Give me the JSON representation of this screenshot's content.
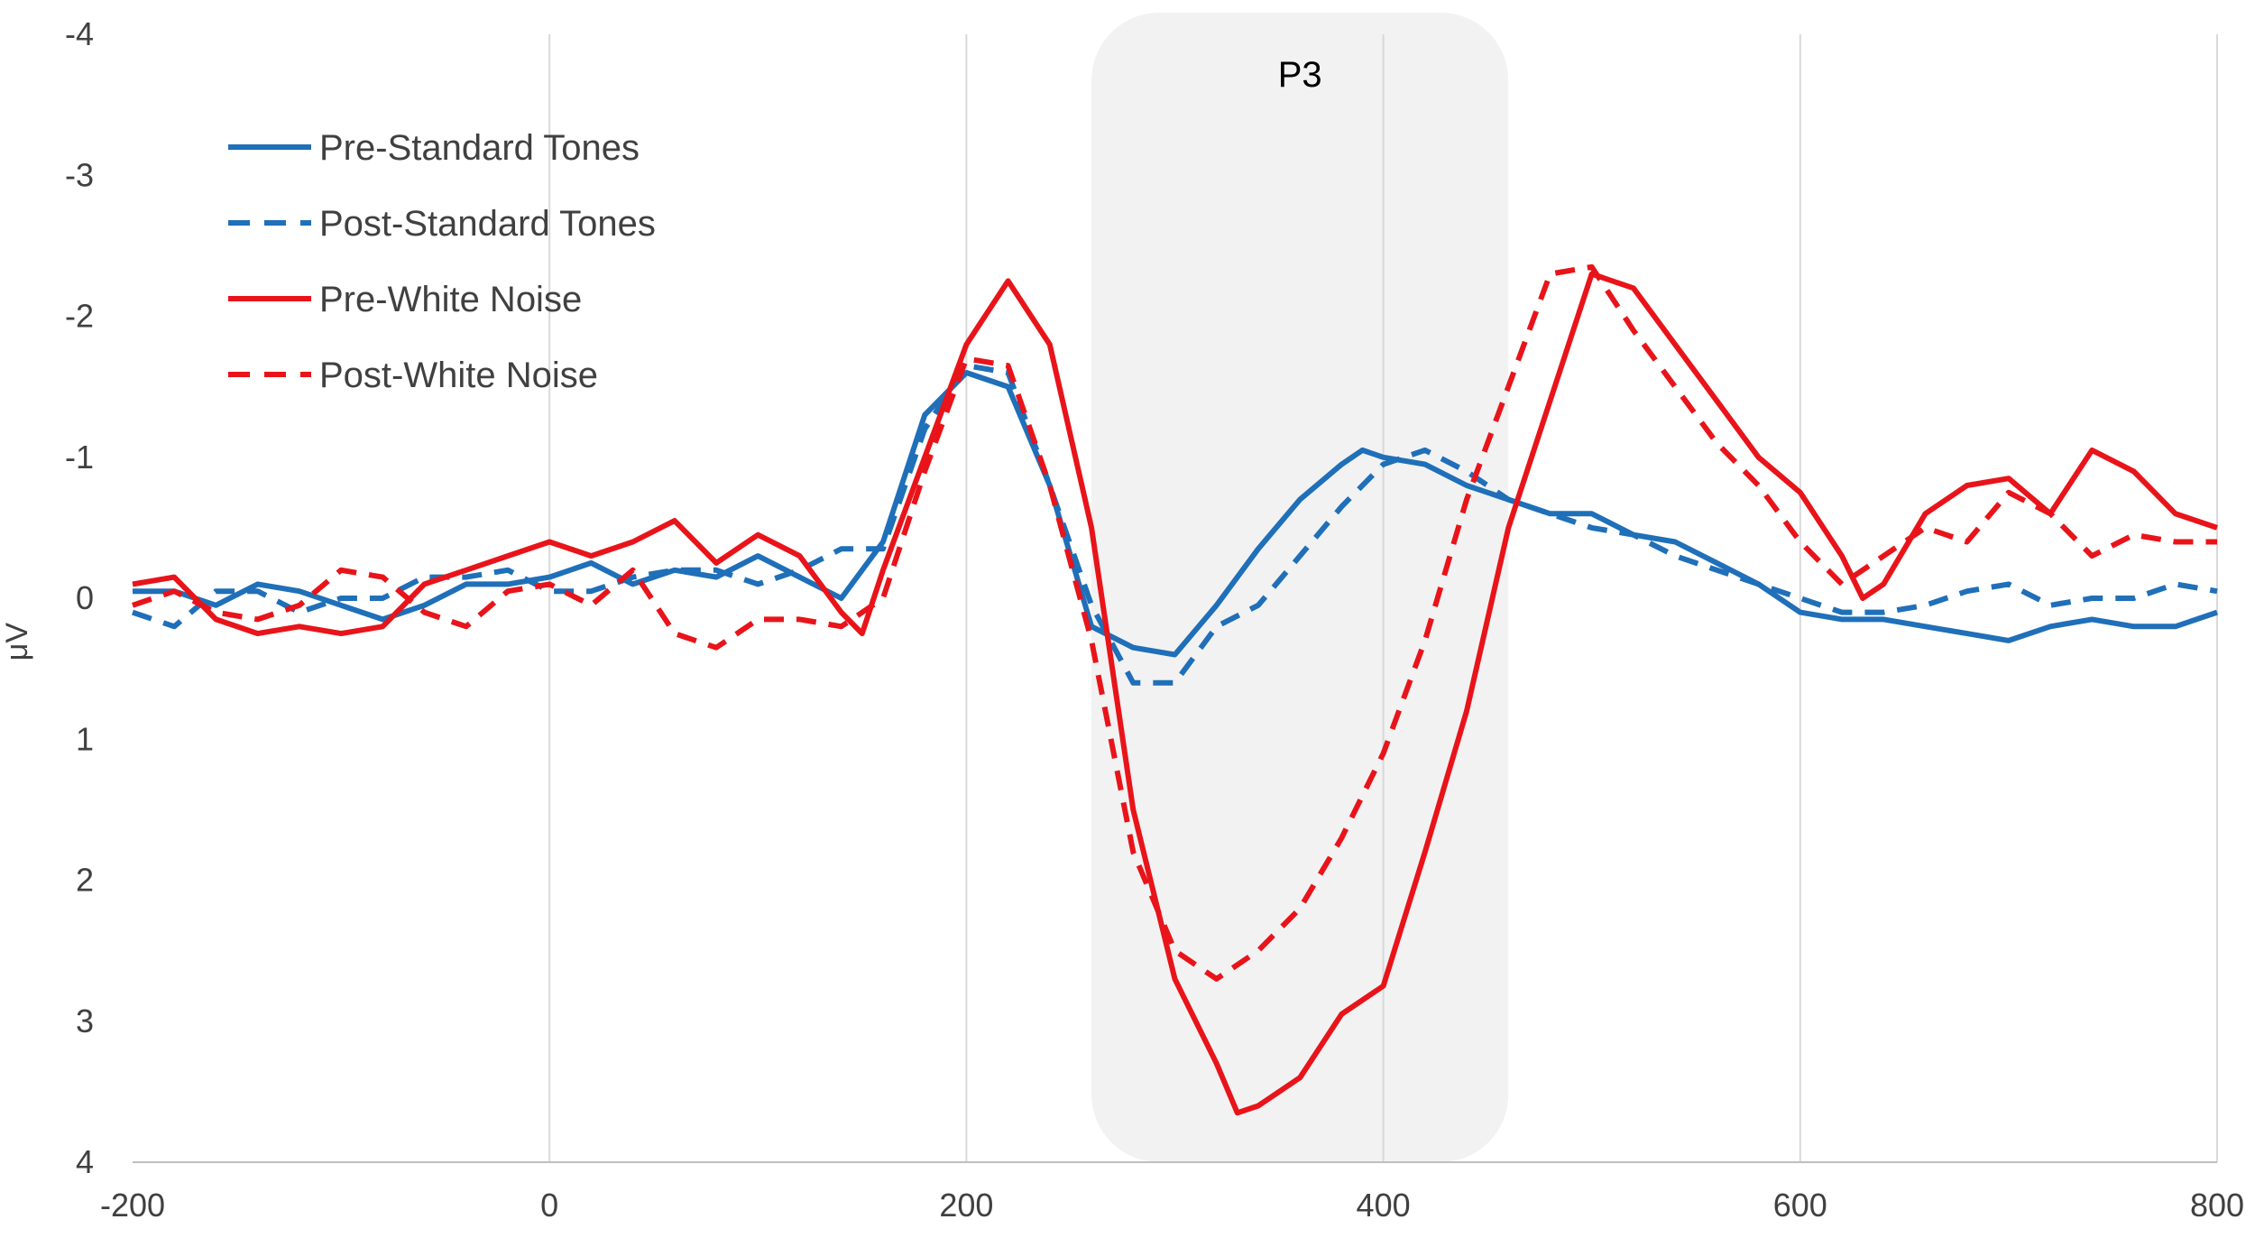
{
  "chart_data": {
    "type": "line",
    "title": "",
    "xlabel": "",
    "ylabel": "μV",
    "xlim": [
      -200,
      800
    ],
    "ylim": [
      -4,
      4
    ],
    "y_inverted": true,
    "x_ticks": [
      -200,
      0,
      200,
      400,
      600,
      800
    ],
    "y_ticks": [
      -4,
      -3,
      -2,
      -1,
      0,
      1,
      2,
      3,
      4
    ],
    "grid": "vertical",
    "legend_position": "top-left",
    "highlight": {
      "label": "P3",
      "x_range": [
        260,
        460
      ],
      "color": "#f2f2f2"
    },
    "series": [
      {
        "name": "Pre-Standard Tones",
        "color": "#1f6fb9",
        "dashed": false,
        "x": [
          -200,
          -180,
          -160,
          -140,
          -120,
          -100,
          -80,
          -60,
          -40,
          -20,
          0,
          20,
          40,
          60,
          80,
          100,
          120,
          140,
          160,
          180,
          200,
          220,
          240,
          260,
          280,
          300,
          320,
          340,
          360,
          380,
          390,
          400,
          420,
          440,
          460,
          480,
          500,
          520,
          540,
          560,
          580,
          600,
          620,
          640,
          660,
          680,
          700,
          720,
          740,
          760,
          780,
          800
        ],
        "values": [
          -0.05,
          -0.05,
          0.05,
          -0.1,
          -0.05,
          0.05,
          0.15,
          0.05,
          -0.1,
          -0.1,
          -0.15,
          -0.25,
          -0.1,
          -0.2,
          -0.15,
          -0.3,
          -0.15,
          0.0,
          -0.4,
          -1.3,
          -1.6,
          -1.5,
          -0.8,
          0.2,
          0.35,
          0.4,
          0.05,
          -0.35,
          -0.7,
          -0.95,
          -1.05,
          -1.0,
          -0.95,
          -0.8,
          -0.7,
          -0.6,
          -0.6,
          -0.45,
          -0.4,
          -0.25,
          -0.1,
          0.1,
          0.15,
          0.15,
          0.2,
          0.25,
          0.3,
          0.2,
          0.15,
          0.2,
          0.2,
          0.1
        ]
      },
      {
        "name": "Post-Standard Tones",
        "color": "#1f6fb9",
        "dashed": true,
        "x": [
          -200,
          -180,
          -160,
          -140,
          -120,
          -100,
          -80,
          -60,
          -40,
          -20,
          0,
          20,
          40,
          60,
          80,
          100,
          120,
          140,
          160,
          180,
          200,
          220,
          240,
          260,
          280,
          300,
          320,
          340,
          360,
          380,
          400,
          420,
          440,
          460,
          480,
          500,
          520,
          540,
          560,
          580,
          600,
          620,
          640,
          660,
          680,
          700,
          720,
          740,
          760,
          780,
          800
        ],
        "values": [
          0.1,
          0.2,
          -0.05,
          -0.05,
          0.1,
          0.0,
          0.0,
          -0.15,
          -0.15,
          -0.2,
          -0.05,
          -0.05,
          -0.15,
          -0.2,
          -0.2,
          -0.1,
          -0.2,
          -0.35,
          -0.35,
          -1.2,
          -1.65,
          -1.6,
          -0.8,
          0.05,
          0.6,
          0.6,
          0.2,
          0.05,
          -0.3,
          -0.65,
          -0.95,
          -1.05,
          -0.9,
          -0.7,
          -0.6,
          -0.5,
          -0.45,
          -0.3,
          -0.2,
          -0.1,
          0.0,
          0.1,
          0.1,
          0.05,
          -0.05,
          -0.1,
          0.05,
          0.0,
          0.0,
          -0.1,
          -0.05
        ]
      },
      {
        "name": "Pre-White Noise",
        "color": "#e8141a",
        "dashed": false,
        "x": [
          -200,
          -180,
          -160,
          -140,
          -120,
          -100,
          -80,
          -60,
          -40,
          -20,
          0,
          20,
          40,
          60,
          80,
          100,
          120,
          140,
          150,
          160,
          180,
          200,
          220,
          240,
          260,
          280,
          300,
          320,
          330,
          340,
          360,
          380,
          400,
          420,
          440,
          460,
          480,
          500,
          520,
          540,
          560,
          580,
          600,
          620,
          630,
          640,
          660,
          680,
          700,
          720,
          740,
          760,
          780,
          800
        ],
        "values": [
          -0.1,
          -0.15,
          0.15,
          0.25,
          0.2,
          0.25,
          0.2,
          -0.1,
          -0.2,
          -0.3,
          -0.4,
          -0.3,
          -0.4,
          -0.55,
          -0.25,
          -0.45,
          -0.3,
          0.1,
          0.25,
          -0.2,
          -1.0,
          -1.8,
          -2.25,
          -1.8,
          -0.5,
          1.5,
          2.7,
          3.3,
          3.65,
          3.6,
          3.4,
          2.95,
          2.75,
          1.8,
          0.8,
          -0.5,
          -1.4,
          -2.3,
          -2.2,
          -1.8,
          -1.4,
          -1.0,
          -0.75,
          -0.3,
          0.0,
          -0.1,
          -0.6,
          -0.8,
          -0.85,
          -0.6,
          -1.05,
          -0.9,
          -0.6,
          -0.5
        ]
      },
      {
        "name": "Post-White Noise",
        "color": "#e8141a",
        "dashed": true,
        "x": [
          -200,
          -180,
          -160,
          -140,
          -120,
          -100,
          -80,
          -60,
          -40,
          -20,
          0,
          20,
          40,
          60,
          80,
          100,
          120,
          140,
          160,
          180,
          200,
          220,
          240,
          260,
          280,
          300,
          320,
          340,
          360,
          380,
          400,
          420,
          440,
          460,
          480,
          500,
          520,
          540,
          560,
          580,
          600,
          620,
          640,
          660,
          680,
          700,
          720,
          740,
          760,
          780,
          800
        ],
        "values": [
          0.05,
          -0.05,
          0.1,
          0.15,
          0.05,
          -0.2,
          -0.15,
          0.1,
          0.2,
          -0.05,
          -0.1,
          0.05,
          -0.2,
          0.25,
          0.35,
          0.15,
          0.15,
          0.2,
          0.0,
          -0.9,
          -1.7,
          -1.65,
          -0.8,
          0.3,
          1.8,
          2.5,
          2.7,
          2.5,
          2.2,
          1.7,
          1.1,
          0.3,
          -0.7,
          -1.5,
          -2.3,
          -2.35,
          -1.9,
          -1.5,
          -1.1,
          -0.8,
          -0.4,
          -0.1,
          -0.3,
          -0.5,
          -0.4,
          -0.75,
          -0.6,
          -0.3,
          -0.45,
          -0.4,
          -0.4
        ]
      }
    ]
  }
}
